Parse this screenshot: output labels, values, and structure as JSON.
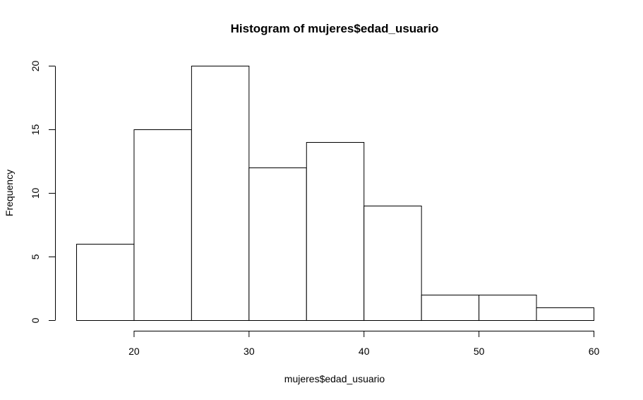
{
  "chart_data": {
    "type": "bar",
    "title": "Histogram of mujeres$edad_usuario",
    "xlabel": "mujeres$edad_usuario",
    "ylabel": "Frequency",
    "bins": [
      {
        "start": 15,
        "end": 20,
        "count": 6
      },
      {
        "start": 20,
        "end": 25,
        "count": 15
      },
      {
        "start": 25,
        "end": 30,
        "count": 20
      },
      {
        "start": 30,
        "end": 35,
        "count": 12
      },
      {
        "start": 35,
        "end": 40,
        "count": 14
      },
      {
        "start": 40,
        "end": 45,
        "count": 9
      },
      {
        "start": 45,
        "end": 50,
        "count": 2
      },
      {
        "start": 50,
        "end": 55,
        "count": 2
      },
      {
        "start": 55,
        "end": 60,
        "count": 1
      }
    ],
    "x_ticks": [
      20,
      30,
      40,
      50,
      60
    ],
    "x_tick_labels": [
      "20",
      "30",
      "40",
      "50",
      "60"
    ],
    "y_ticks": [
      0,
      5,
      10,
      15,
      20
    ],
    "y_tick_labels": [
      "0",
      "5",
      "10",
      "15",
      "20"
    ],
    "grid": false,
    "bar_fill": "#ffffff",
    "bar_stroke": "#000000"
  }
}
